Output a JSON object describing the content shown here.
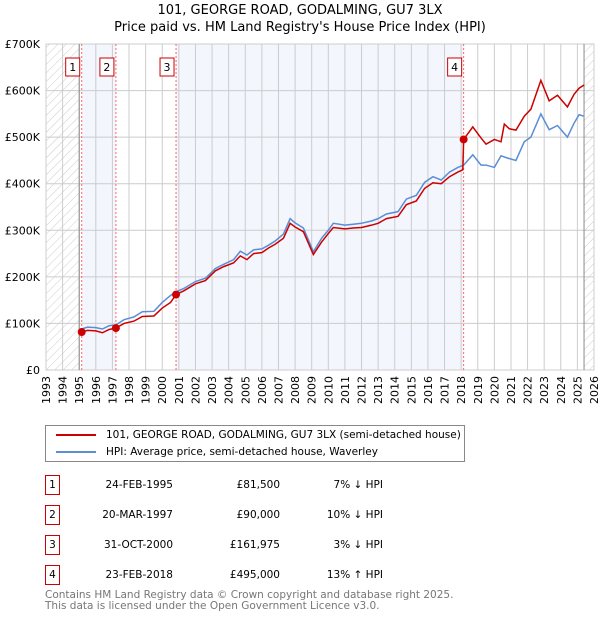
{
  "chart_data": {
    "type": "line",
    "title": "101, GEORGE ROAD, GODALMING, GU7 3LX",
    "subtitle": "Price paid vs. HM Land Registry's House Price Index (HPI)",
    "xlim": [
      1993,
      2026
    ],
    "ylim": [
      0,
      700000
    ],
    "x_ticks": [
      "1993",
      "1994",
      "1995",
      "1996",
      "1997",
      "1998",
      "1999",
      "2000",
      "2001",
      "2002",
      "2003",
      "2004",
      "2005",
      "2006",
      "2007",
      "2008",
      "2009",
      "2010",
      "2011",
      "2012",
      "2013",
      "2014",
      "2015",
      "2016",
      "2017",
      "2018",
      "2019",
      "2020",
      "2021",
      "2022",
      "2023",
      "2024",
      "2025",
      "2026"
    ],
    "y_ticks": [
      {
        "v": 0,
        "label": "£0"
      },
      {
        "v": 100000,
        "label": "£100K"
      },
      {
        "v": 200000,
        "label": "£200K"
      },
      {
        "v": 300000,
        "label": "£300K"
      },
      {
        "v": 400000,
        "label": "£400K"
      },
      {
        "v": 500000,
        "label": "£500K"
      },
      {
        "v": 600000,
        "label": "£600K"
      },
      {
        "v": 700000,
        "label": "£700K"
      }
    ],
    "grid": true,
    "legend_placement": "below",
    "series": [
      {
        "name": "101, GEORGE ROAD, GODALMING, GU7 3LX (semi-detached house)",
        "color": "#cc0000",
        "points": [
          [
            1995.15,
            81500
          ],
          [
            1995.5,
            85000
          ],
          [
            1996,
            84000
          ],
          [
            1996.4,
            80000
          ],
          [
            1996.8,
            87000
          ],
          [
            1997.21,
            90000
          ],
          [
            1997.7,
            100000
          ],
          [
            1998.3,
            105000
          ],
          [
            1998.8,
            115000
          ],
          [
            1999.5,
            116000
          ],
          [
            2000,
            133000
          ],
          [
            2000.5,
            145000
          ],
          [
            2000.83,
            161975
          ],
          [
            2001.3,
            170000
          ],
          [
            2002,
            185000
          ],
          [
            2002.6,
            192000
          ],
          [
            2003.2,
            213000
          ],
          [
            2003.7,
            222000
          ],
          [
            2004.3,
            230000
          ],
          [
            2004.7,
            245000
          ],
          [
            2005.1,
            237000
          ],
          [
            2005.5,
            250000
          ],
          [
            2006,
            252000
          ],
          [
            2006.4,
            262000
          ],
          [
            2006.8,
            270000
          ],
          [
            2007.3,
            283000
          ],
          [
            2007.7,
            315000
          ],
          [
            2008,
            307000
          ],
          [
            2008.5,
            297000
          ],
          [
            2009.1,
            248000
          ],
          [
            2009.6,
            275000
          ],
          [
            2010,
            293000
          ],
          [
            2010.3,
            306000
          ],
          [
            2011,
            303000
          ],
          [
            2011.5,
            305000
          ],
          [
            2012,
            306000
          ],
          [
            2012.6,
            311000
          ],
          [
            2013,
            315000
          ],
          [
            2013.5,
            325000
          ],
          [
            2014.2,
            330000
          ],
          [
            2014.7,
            355000
          ],
          [
            2015.3,
            363000
          ],
          [
            2015.8,
            390000
          ],
          [
            2016.3,
            402000
          ],
          [
            2016.8,
            400000
          ],
          [
            2017.3,
            415000
          ],
          [
            2017.8,
            425000
          ],
          [
            2018.1,
            430000
          ],
          [
            2018.15,
            495000
          ],
          [
            2018.7,
            522000
          ],
          [
            2019.2,
            498000
          ],
          [
            2019.5,
            485000
          ],
          [
            2020,
            495000
          ],
          [
            2020.4,
            490000
          ],
          [
            2020.6,
            528000
          ],
          [
            2020.9,
            518000
          ],
          [
            2021.3,
            515000
          ],
          [
            2021.8,
            545000
          ],
          [
            2022.2,
            560000
          ],
          [
            2022.8,
            622000
          ],
          [
            2023.3,
            578000
          ],
          [
            2023.8,
            590000
          ],
          [
            2024.4,
            565000
          ],
          [
            2024.8,
            592000
          ],
          [
            2025.1,
            605000
          ],
          [
            2025.4,
            612000
          ]
        ]
      },
      {
        "name": "HPI: Average price, semi-detached house, Waverley",
        "color": "#5b8dd6",
        "points": [
          [
            1995.15,
            88000
          ],
          [
            1995.5,
            92000
          ],
          [
            1996,
            91000
          ],
          [
            1996.4,
            88000
          ],
          [
            1996.8,
            95000
          ],
          [
            1997.21,
            97000
          ],
          [
            1997.7,
            108000
          ],
          [
            1998.3,
            114000
          ],
          [
            1998.8,
            125000
          ],
          [
            1999.5,
            126000
          ],
          [
            2000,
            145000
          ],
          [
            2000.5,
            160000
          ],
          [
            2000.83,
            168000
          ],
          [
            2001.3,
            175000
          ],
          [
            2002,
            190000
          ],
          [
            2002.6,
            197000
          ],
          [
            2003.2,
            218000
          ],
          [
            2003.7,
            227000
          ],
          [
            2004.3,
            237000
          ],
          [
            2004.7,
            255000
          ],
          [
            2005.1,
            247000
          ],
          [
            2005.5,
            258000
          ],
          [
            2006,
            260000
          ],
          [
            2006.4,
            268000
          ],
          [
            2006.8,
            277000
          ],
          [
            2007.3,
            292000
          ],
          [
            2007.7,
            325000
          ],
          [
            2008,
            316000
          ],
          [
            2008.5,
            305000
          ],
          [
            2009.1,
            254000
          ],
          [
            2009.6,
            283000
          ],
          [
            2010,
            300000
          ],
          [
            2010.3,
            315000
          ],
          [
            2011,
            311000
          ],
          [
            2011.5,
            313000
          ],
          [
            2012,
            315000
          ],
          [
            2012.6,
            320000
          ],
          [
            2013,
            325000
          ],
          [
            2013.5,
            335000
          ],
          [
            2014.2,
            340000
          ],
          [
            2014.7,
            367000
          ],
          [
            2015.3,
            375000
          ],
          [
            2015.8,
            403000
          ],
          [
            2016.3,
            415000
          ],
          [
            2016.8,
            408000
          ],
          [
            2017.3,
            425000
          ],
          [
            2017.8,
            435000
          ],
          [
            2018.15,
            440000
          ],
          [
            2018.7,
            462000
          ],
          [
            2019.2,
            440000
          ],
          [
            2019.5,
            440000
          ],
          [
            2020,
            435000
          ],
          [
            2020.4,
            460000
          ],
          [
            2020.8,
            455000
          ],
          [
            2021.3,
            450000
          ],
          [
            2021.8,
            490000
          ],
          [
            2022.2,
            500000
          ],
          [
            2022.8,
            550000
          ],
          [
            2023.3,
            516000
          ],
          [
            2023.8,
            525000
          ],
          [
            2024.4,
            500000
          ],
          [
            2024.8,
            530000
          ],
          [
            2025.1,
            548000
          ],
          [
            2025.4,
            545000
          ]
        ]
      }
    ],
    "sales": [
      {
        "num": "1",
        "date": "24-FEB-1995",
        "x": 1995.15,
        "price": 81500,
        "price_label": "£81,500",
        "hpi": "7% ↓ HPI"
      },
      {
        "num": "2",
        "date": "20-MAR-1997",
        "x": 1997.21,
        "price": 90000,
        "price_label": "£90,000",
        "hpi": "10% ↓ HPI"
      },
      {
        "num": "3",
        "date": "31-OCT-2000",
        "x": 2000.83,
        "price": 161975,
        "price_label": "£161,975",
        "hpi": "3% ↓ HPI"
      },
      {
        "num": "4",
        "date": "23-FEB-2018",
        "x": 2018.15,
        "price": 495000,
        "price_label": "£495,000",
        "hpi": "13% ↑ HPI"
      }
    ],
    "hatched_ranges": [
      [
        1993,
        1995
      ],
      [
        2025.4,
        2026
      ]
    ]
  },
  "footer": {
    "line1": "Contains HM Land Registry data © Crown copyright and database right 2025.",
    "line2": "This data is licensed under the Open Government Licence v3.0."
  }
}
